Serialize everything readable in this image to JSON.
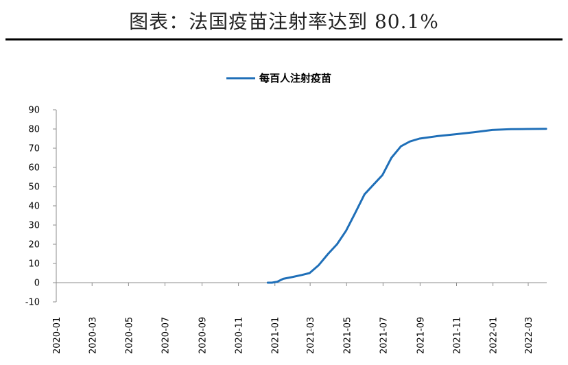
{
  "header": {
    "title": "图表：法国疫苗注射率达到 80.1%"
  },
  "colors": {
    "series": "#1f6fb8",
    "axis": "#8c8c8c",
    "rule": "#000000"
  },
  "chart_data": {
    "type": "line",
    "legend": {
      "position": "top-center"
    },
    "grid": false,
    "ylim": [
      -10,
      90
    ],
    "yticks": [
      -10,
      0,
      10,
      20,
      30,
      40,
      50,
      60,
      70,
      80,
      90
    ],
    "xlim": [
      "2020-01-01",
      "2022-04-01"
    ],
    "xticks": [
      "2020-01",
      "2020-03",
      "2020-05",
      "2020-07",
      "2020-09",
      "2020-11",
      "2021-01",
      "2021-03",
      "2021-05",
      "2021-07",
      "2021-09",
      "2021-11",
      "2022-01",
      "2022-03"
    ],
    "series": [
      {
        "name": "每百人注射疫苗",
        "color": "#1f6fb8",
        "points": [
          [
            "2020-12-20",
            0
          ],
          [
            "2020-12-27",
            0
          ],
          [
            "2021-01-05",
            0.5
          ],
          [
            "2021-01-15",
            2
          ],
          [
            "2021-01-31",
            3
          ],
          [
            "2021-02-15",
            4
          ],
          [
            "2021-02-28",
            5
          ],
          [
            "2021-03-15",
            9
          ],
          [
            "2021-03-31",
            15
          ],
          [
            "2021-04-15",
            20
          ],
          [
            "2021-04-30",
            27
          ],
          [
            "2021-05-15",
            36
          ],
          [
            "2021-05-31",
            46
          ],
          [
            "2021-06-15",
            51
          ],
          [
            "2021-06-30",
            56
          ],
          [
            "2021-07-15",
            65
          ],
          [
            "2021-07-31",
            71
          ],
          [
            "2021-08-15",
            73.5
          ],
          [
            "2021-08-31",
            75
          ],
          [
            "2021-09-30",
            76.3
          ],
          [
            "2021-10-31",
            77.3
          ],
          [
            "2021-11-30",
            78.3
          ],
          [
            "2021-12-31",
            79.5
          ],
          [
            "2022-01-31",
            79.9
          ],
          [
            "2022-02-28",
            80
          ],
          [
            "2022-03-31",
            80.1
          ]
        ]
      }
    ]
  }
}
